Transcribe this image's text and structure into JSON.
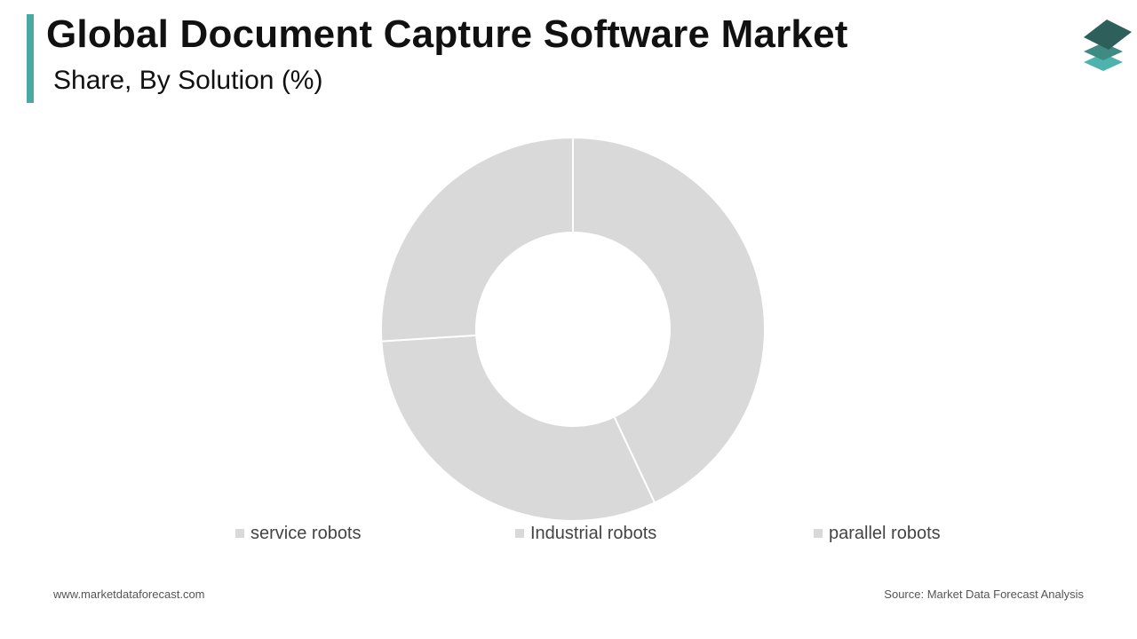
{
  "header": {
    "title": "Global Document Capture Software Market",
    "subtitle": "Share, By Solution (%)"
  },
  "colors": {
    "accent": "#4aa9a2",
    "slice_fill": "#d9d9d9",
    "slice_stroke": "#ffffff",
    "logo_dark": "#2f5f5a",
    "logo_mid": "#3f8b84",
    "logo_light": "#4fb3ad"
  },
  "logo": {
    "icon": "stacked-layers-icon"
  },
  "chart_data": {
    "type": "pie",
    "donut": true,
    "labels": [
      "service robots",
      "Industrial robots",
      "parallel robots"
    ],
    "values": [
      43,
      31,
      26
    ],
    "legend": "bottom",
    "data_labels": false
  },
  "footer": {
    "website": "www.marketdataforecast.com",
    "source": "Source: Market Data Forecast Analysis"
  }
}
